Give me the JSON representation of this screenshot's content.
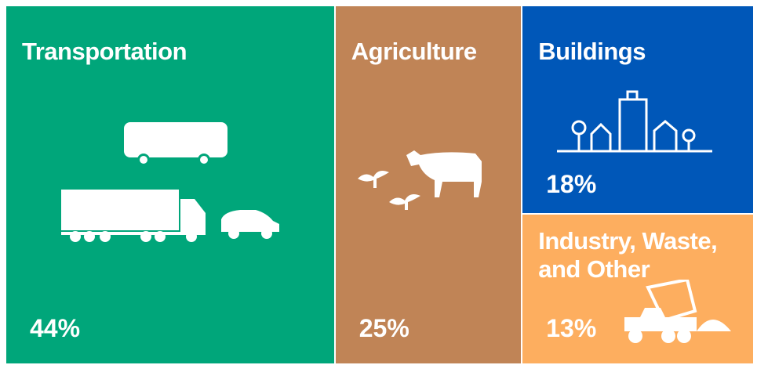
{
  "chart_data": {
    "type": "treemap",
    "categories": [
      "Transportation",
      "Agriculture",
      "Buildings",
      "Industry, Waste, and Other"
    ],
    "values": [
      44,
      25,
      18,
      13
    ],
    "value_labels": [
      "44%",
      "25%",
      "18%",
      "13%"
    ],
    "colors": [
      "#00a67a",
      "#c08456",
      "#0057b8",
      "#fdae5f"
    ]
  }
}
